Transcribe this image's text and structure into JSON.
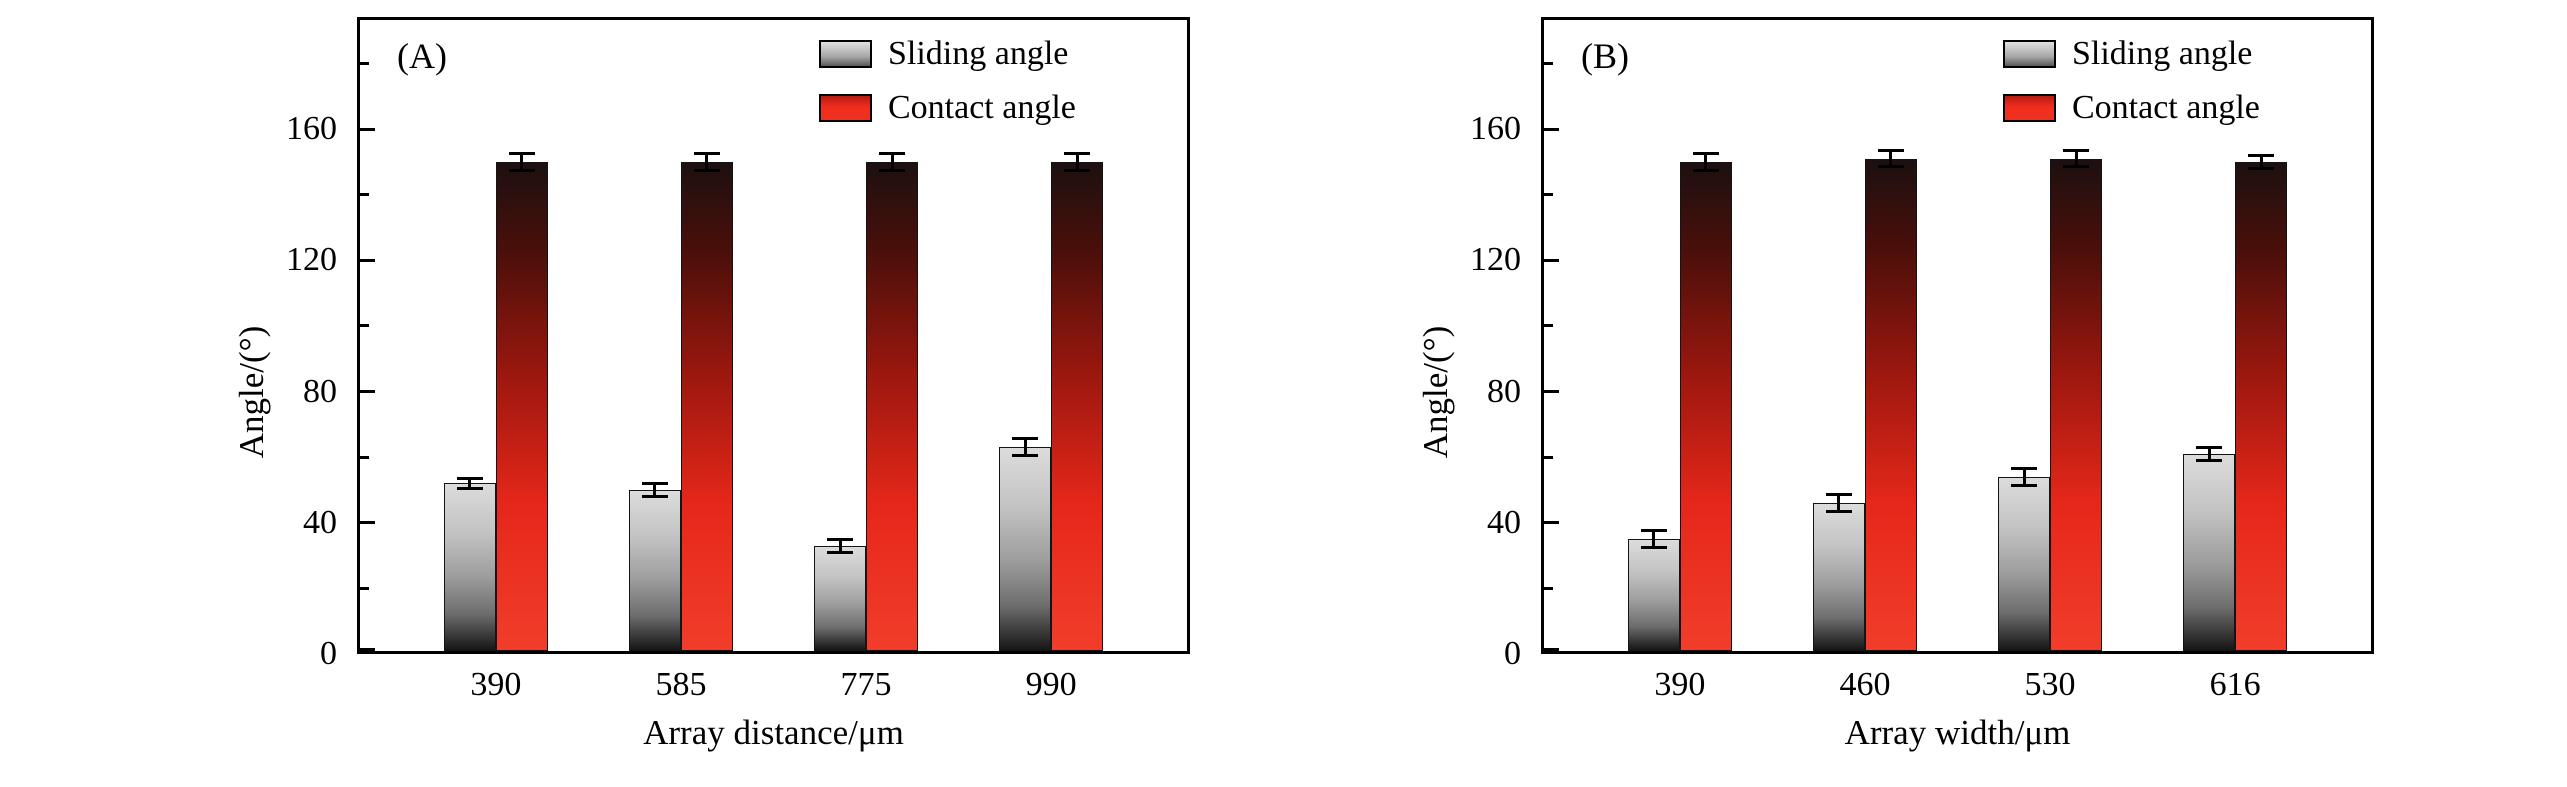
{
  "figure": {
    "background": "#ffffff",
    "accent_red": "#ee2a1e",
    "bar_gray": "#9e9e9e"
  },
  "chart_data": [
    {
      "type": "bar",
      "panel_label": "(A)",
      "xlabel": "Array distance/μm",
      "ylabel": "Angle/(°)",
      "categories": [
        "390",
        "585",
        "775",
        "990"
      ],
      "yticks": [
        0,
        40,
        80,
        120,
        160
      ],
      "minor_yticks": [
        20,
        60,
        100,
        140,
        180
      ],
      "ylim": [
        0,
        194
      ],
      "grid": false,
      "legend_position": "top-right",
      "series": [
        {
          "name": "Sliding angle",
          "values": [
            52,
            50,
            33,
            63
          ],
          "errors": [
            2,
            2.5,
            2.5,
            3
          ],
          "bar_gradient": [
            [
              "#dcdcdc",
              0
            ],
            [
              "#c2c2c2",
              30
            ],
            [
              "#9e9e9e",
              55
            ],
            [
              "#6e6e6e",
              78
            ],
            [
              "#161616",
              100
            ]
          ],
          "swatch_gradient": [
            [
              "#e0e0e0",
              0
            ],
            [
              "#a8a8a8",
              60
            ],
            [
              "#5a5a5a",
              100
            ]
          ]
        },
        {
          "name": "Contact angle",
          "values": [
            150,
            150,
            150,
            150
          ],
          "errors": [
            3,
            3,
            3,
            3
          ],
          "bar_gradient": [
            [
              "#1c1010",
              0
            ],
            [
              "#4a0f0a",
              18
            ],
            [
              "#a0180f",
              45
            ],
            [
              "#e5271a",
              70
            ],
            [
              "#f23d2a",
              100
            ]
          ],
          "swatch_gradient": [
            [
              "#b51a10",
              0
            ],
            [
              "#ee2d1e",
              45
            ],
            [
              "#f0301f",
              100
            ]
          ]
        }
      ]
    },
    {
      "type": "bar",
      "panel_label": "(B)",
      "xlabel": "Array width/μm",
      "ylabel": "Angle/(°)",
      "categories": [
        "390",
        "460",
        "530",
        "616"
      ],
      "yticks": [
        0,
        40,
        80,
        120,
        160
      ],
      "minor_yticks": [
        20,
        60,
        100,
        140,
        180
      ],
      "ylim": [
        0,
        194
      ],
      "grid": false,
      "legend_position": "top-right",
      "series": [
        {
          "name": "Sliding angle",
          "values": [
            35,
            46,
            54,
            61
          ],
          "errors": [
            3,
            3,
            3,
            2.5
          ],
          "bar_gradient": [
            [
              "#dcdcdc",
              0
            ],
            [
              "#c2c2c2",
              30
            ],
            [
              "#9e9e9e",
              55
            ],
            [
              "#6e6e6e",
              78
            ],
            [
              "#161616",
              100
            ]
          ],
          "swatch_gradient": [
            [
              "#e0e0e0",
              0
            ],
            [
              "#a8a8a8",
              60
            ],
            [
              "#5a5a5a",
              100
            ]
          ]
        },
        {
          "name": "Contact angle",
          "values": [
            150,
            151,
            151,
            150
          ],
          "errors": [
            3,
            3,
            3,
            2.5
          ],
          "bar_gradient": [
            [
              "#1c1010",
              0
            ],
            [
              "#4a0f0a",
              18
            ],
            [
              "#a0180f",
              45
            ],
            [
              "#e5271a",
              70
            ],
            [
              "#f23d2a",
              100
            ]
          ],
          "swatch_gradient": [
            [
              "#b51a10",
              0
            ],
            [
              "#ee2d1e",
              45
            ],
            [
              "#f0301f",
              100
            ]
          ]
        }
      ]
    }
  ]
}
